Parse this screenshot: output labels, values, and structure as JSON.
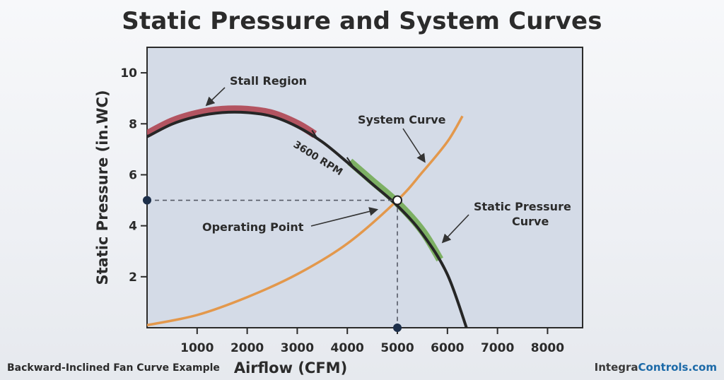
{
  "title": "Static Pressure and System Curves",
  "caption": "Backward-Inclined Fan Curve Example",
  "brand": {
    "part1": "Integra",
    "part2": "Controls.com"
  },
  "colors": {
    "plot_bg": "#d4dbe7",
    "fan_curve": "#262626",
    "stall": "#b35461",
    "operating_range": "#7db064",
    "system_curve": "#e3984c",
    "marker": "#1d2f4a",
    "dashed": "#555a66"
  },
  "chart_data": {
    "type": "line",
    "xlabel": "Airflow (CFM)",
    "ylabel": "Static Pressure (in.WC)",
    "xlim": [
      0,
      8700
    ],
    "ylim": [
      0,
      11
    ],
    "xticks": [
      1000,
      2000,
      3000,
      4000,
      5000,
      6000,
      7000,
      8000
    ],
    "yticks": [
      2,
      4,
      6,
      8,
      10
    ],
    "grid": false,
    "series": [
      {
        "name": "Static Pressure Curve",
        "label": "3600 RPM",
        "x": [
          0,
          500,
          1000,
          1500,
          2000,
          2500,
          3000,
          3500,
          4000,
          4500,
          5000,
          5500,
          6000,
          6400
        ],
        "y": [
          7.6,
          8.1,
          8.4,
          8.55,
          8.55,
          8.4,
          8.0,
          7.4,
          6.6,
          5.75,
          4.9,
          3.8,
          2.2,
          0.0
        ]
      },
      {
        "name": "System Curve",
        "x": [
          0,
          1000,
          2000,
          3000,
          4000,
          5000,
          5500,
          6000,
          6300
        ],
        "y": [
          0.1,
          0.5,
          1.2,
          2.1,
          3.3,
          5.0,
          6.1,
          7.3,
          8.3
        ]
      }
    ],
    "highlights": [
      {
        "name": "Stall Region",
        "x_range": [
          0,
          3350
        ]
      },
      {
        "name": "operating range",
        "x_range": [
          4050,
          5850
        ]
      }
    ],
    "operating_point": {
      "x": 5000,
      "y": 5.0
    },
    "annotations": [
      {
        "text": "Stall Region"
      },
      {
        "text": "System Curve"
      },
      {
        "text": "3600 RPM"
      },
      {
        "text": "Operating Point"
      },
      {
        "text": "Static Pressure"
      },
      {
        "text": "Curve"
      }
    ]
  }
}
